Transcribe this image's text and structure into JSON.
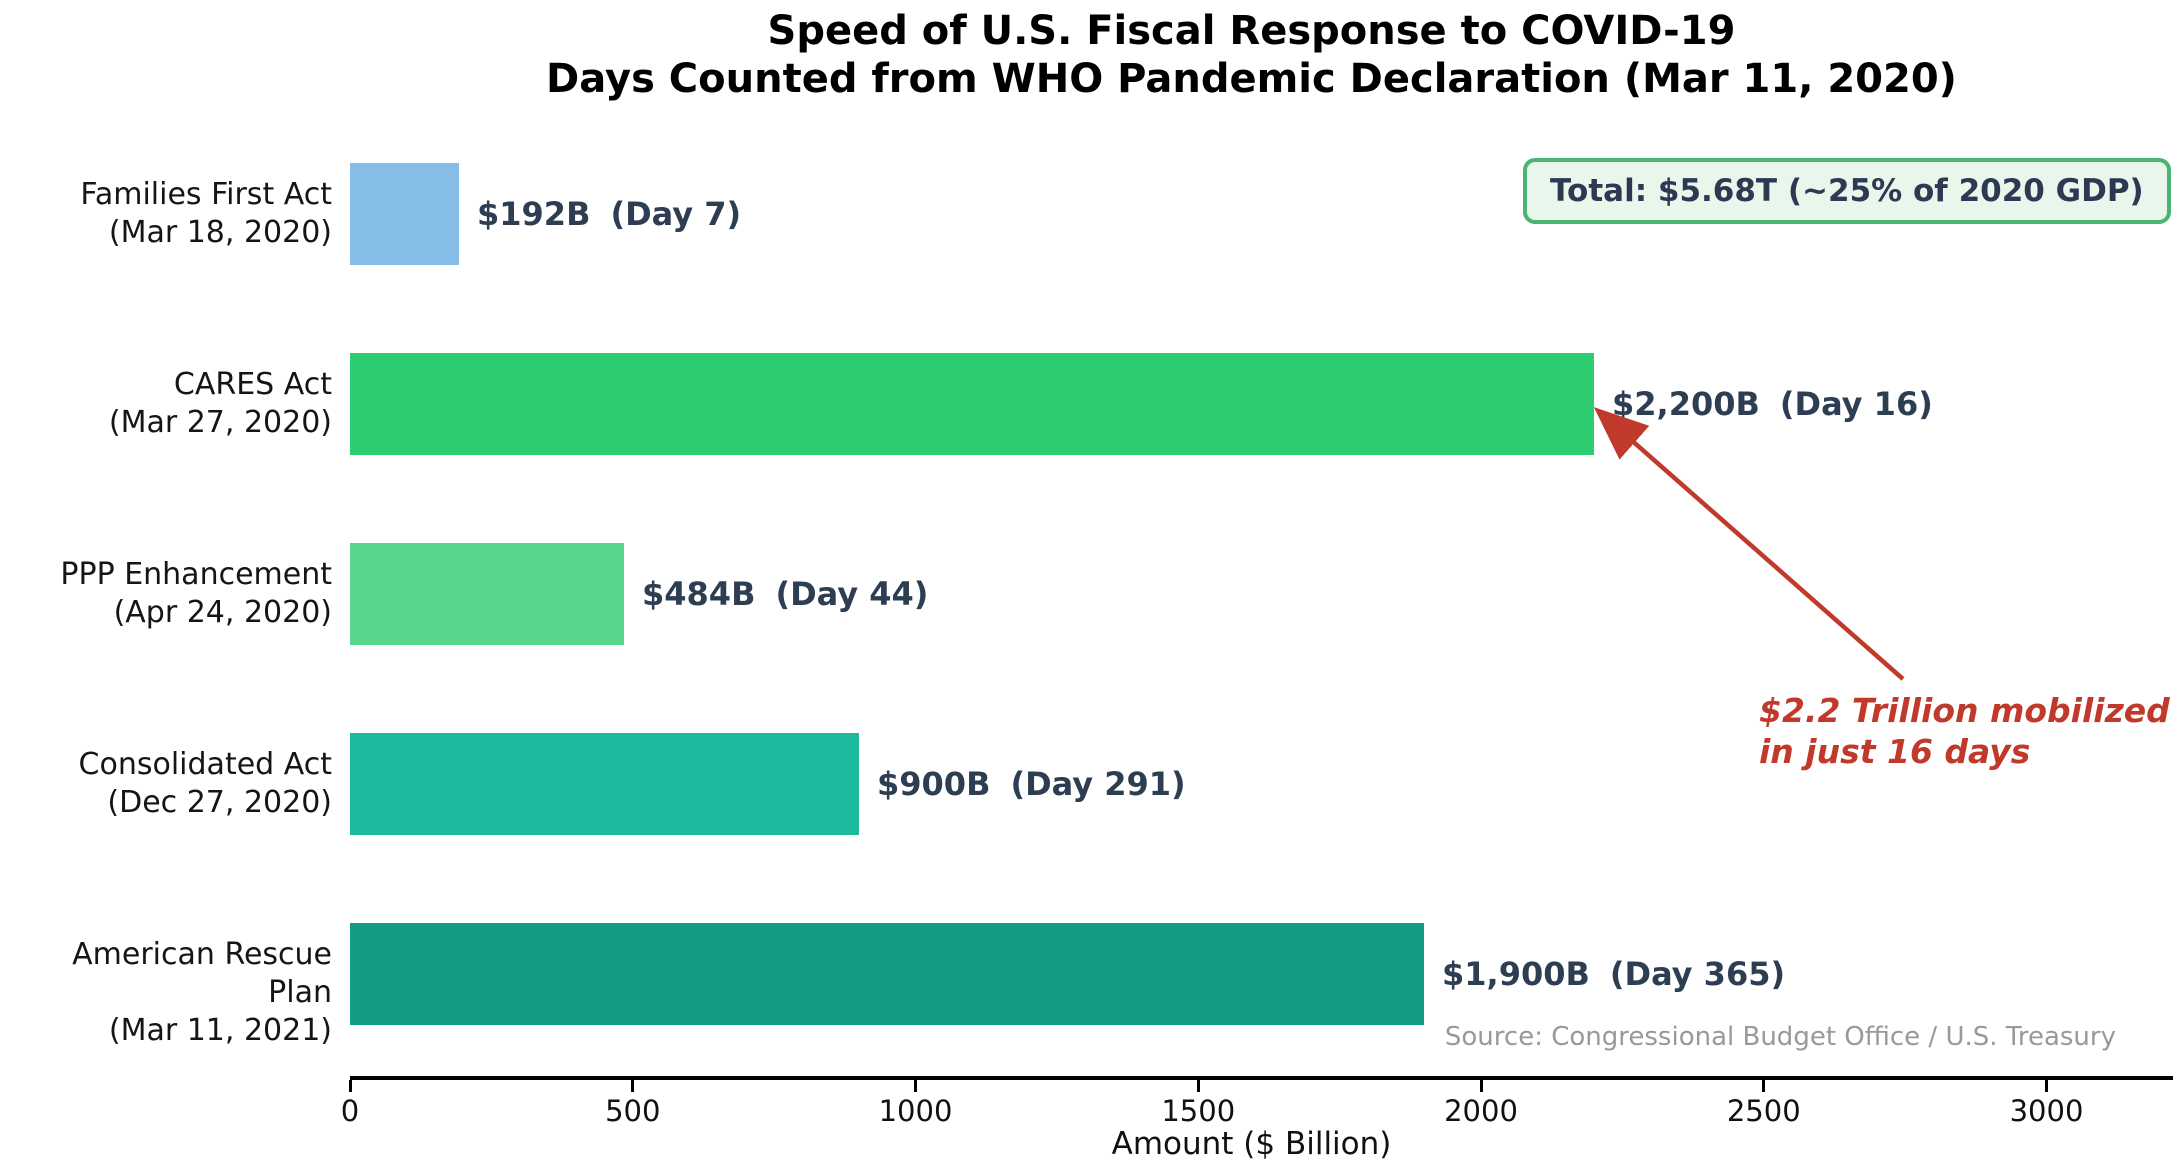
{
  "chart_data": {
    "type": "bar",
    "orientation": "horizontal",
    "title": "Speed of U.S. Fiscal Response to COVID-19",
    "subtitle": "Days Counted from WHO Pandemic Declaration (Mar 11, 2020)",
    "xlabel": "Amount ($ Billion)",
    "xlim": [
      0,
      3224
    ],
    "xticks": [
      0,
      500,
      1000,
      1500,
      2000,
      2500,
      3000
    ],
    "grid": false,
    "bars": [
      {
        "name": "Families First Act",
        "date": "(Mar 18, 2020)",
        "value": 192,
        "day": 7,
        "value_label": "$192B",
        "day_label": "(Day 7)",
        "color": "#85BDE6"
      },
      {
        "name": "CARES Act",
        "date": "(Mar 27, 2020)",
        "value": 2200,
        "day": 16,
        "value_label": "$2,200B",
        "day_label": "(Day 16)",
        "color": "#2ECC71"
      },
      {
        "name": "PPP Enhancement",
        "date": "(Apr 24, 2020)",
        "value": 484,
        "day": 44,
        "value_label": "$484B",
        "day_label": "(Day 44)",
        "color": "#57D68D"
      },
      {
        "name": "Consolidated Act",
        "date": "(Dec 27, 2020)",
        "value": 900,
        "day": 291,
        "value_label": "$900B",
        "day_label": "(Day 291)",
        "color": "#1CB99C"
      },
      {
        "name": "American Rescue Plan",
        "date": "(Mar 11, 2021)",
        "value": 1900,
        "day": 365,
        "value_label": "$1,900B",
        "day_label": "(Day 365)",
        "color": "#169C84"
      }
    ],
    "total_badge_label": "Total: $5.68T (~25% of 2020 GDP)",
    "annotation": {
      "line1": "$2.2 Trillion mobilized",
      "line2": "in just 16 days",
      "color": "#C0392B",
      "points_to_bar": "CARES Act"
    },
    "source": "Source: Congressional Budget Office / U.S. Treasury",
    "colors": {
      "badge_border": "#4CB372",
      "badge_background": "#E9F6EC",
      "badge_text": "#2B3A52",
      "value_label_text": "#2E3E52",
      "annotation_red": "#C0392B",
      "source_text": "#999999"
    }
  }
}
